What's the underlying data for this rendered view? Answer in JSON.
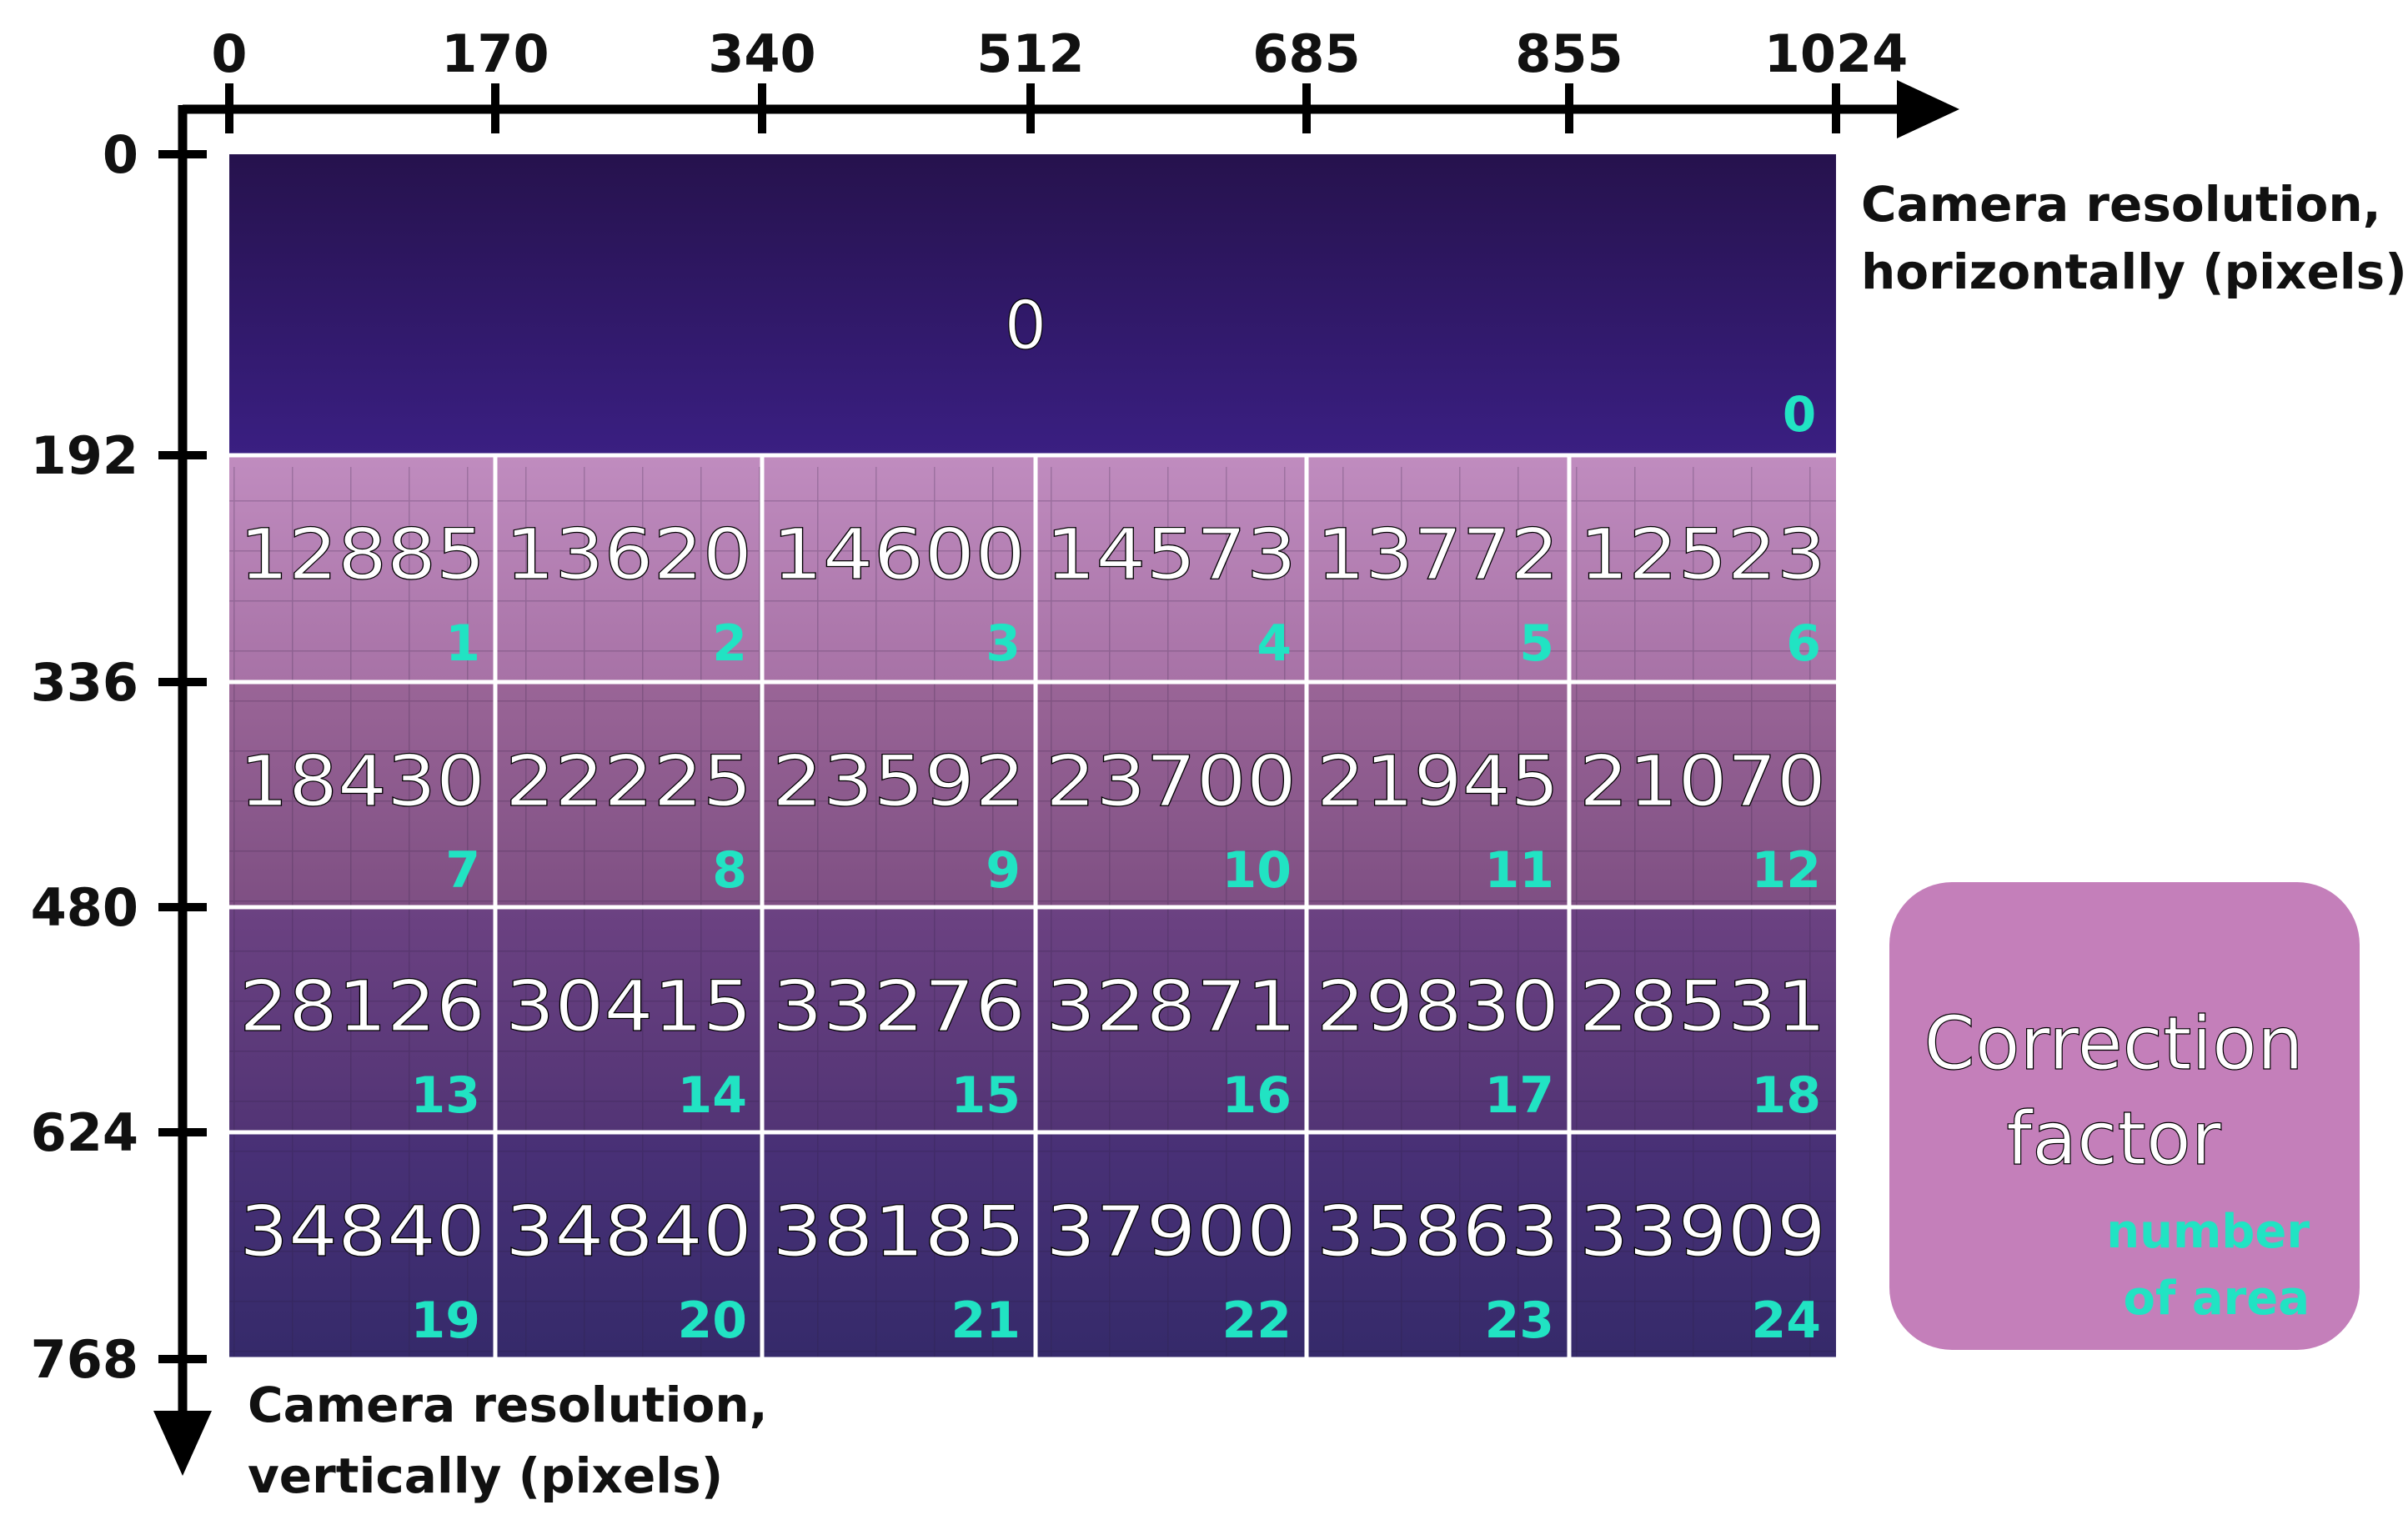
{
  "x_axis": {
    "ticks": [
      "0",
      "170",
      "340",
      "512",
      "685",
      "855",
      "1024"
    ],
    "label_lines": [
      "Camera resolution,",
      "horizontally (pixels)"
    ]
  },
  "y_axis": {
    "ticks": [
      "0",
      "192",
      "336",
      "480",
      "624",
      "768"
    ],
    "label_lines": [
      "Camera resolution,",
      "vertically (pixels)"
    ]
  },
  "top_area": {
    "value": "0",
    "number": "0"
  },
  "areas": [
    {
      "value": "12885",
      "number": "1"
    },
    {
      "value": "13620",
      "number": "2"
    },
    {
      "value": "14600",
      "number": "3"
    },
    {
      "value": "14573",
      "number": "4"
    },
    {
      "value": "13772",
      "number": "5"
    },
    {
      "value": "12523",
      "number": "6"
    },
    {
      "value": "18430",
      "number": "7"
    },
    {
      "value": "22225",
      "number": "8"
    },
    {
      "value": "23592",
      "number": "9"
    },
    {
      "value": "23700",
      "number": "10"
    },
    {
      "value": "21945",
      "number": "11"
    },
    {
      "value": "21070",
      "number": "12"
    },
    {
      "value": "28126",
      "number": "13"
    },
    {
      "value": "30415",
      "number": "14"
    },
    {
      "value": "33276",
      "number": "15"
    },
    {
      "value": "32871",
      "number": "16"
    },
    {
      "value": "29830",
      "number": "17"
    },
    {
      "value": "28531",
      "number": "18"
    },
    {
      "value": "34840",
      "number": "19"
    },
    {
      "value": "34840",
      "number": "20"
    },
    {
      "value": "38185",
      "number": "21"
    },
    {
      "value": "37900",
      "number": "22"
    },
    {
      "value": "35863",
      "number": "23"
    },
    {
      "value": "33909",
      "number": "24"
    }
  ],
  "legend": {
    "title_lines": [
      "Correction",
      "factor"
    ],
    "sub_lines": [
      "number",
      "of area"
    ]
  },
  "colors": {
    "axis": "#000000",
    "grid_line": "#ffffff",
    "value_text": "#ffffff",
    "number_text": "#21e3c3",
    "legend_box": "#c47fba",
    "top_area_top": "#26124d",
    "top_area_bottom": "#3a1f82",
    "row1": "#b97fb5",
    "row2": "#8d5a8c",
    "row3": "#5e3a79",
    "row4": "#3f2b6e"
  }
}
